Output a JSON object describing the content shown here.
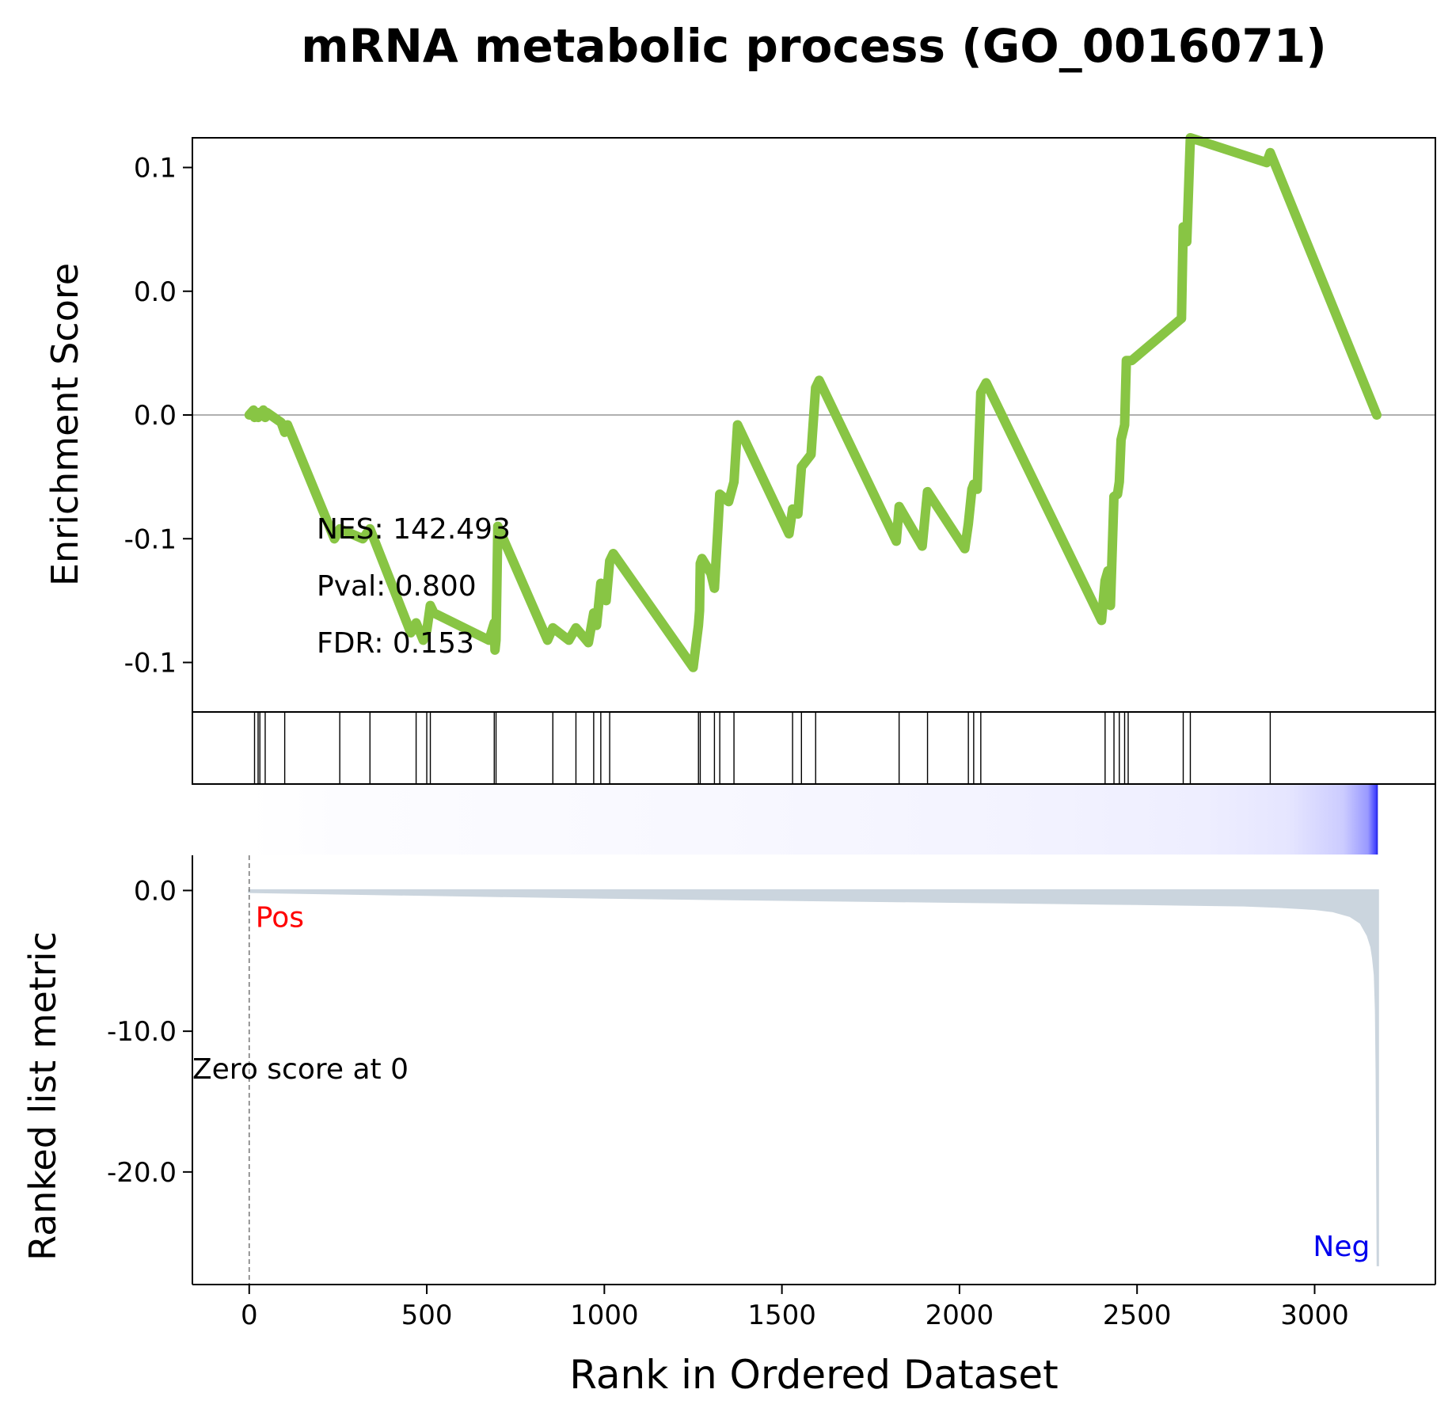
{
  "title": "mRNA metabolic process (GO_0016071)",
  "colors": {
    "es_line": "#88C544",
    "metric_fill": "#CBD5DE",
    "pos": "#FF0000",
    "neg": "#0000EE",
    "axis": "#000000",
    "zero_line": "#808080"
  },
  "chart_data": {
    "type": "line",
    "xlabel": "Rank in Ordered Dataset",
    "xlim": [
      -160,
      3340
    ],
    "x_ticks": [
      0,
      500,
      1000,
      1500,
      2000,
      2500,
      3000
    ],
    "x_tick_labels": [
      "0",
      "500",
      "1000",
      "1500",
      "2000",
      "2500",
      "3000"
    ],
    "es_panel": {
      "ylabel": "Enrichment Score",
      "ylim": [
        -0.17,
        0.062
      ],
      "y_ticks": [
        0.05,
        0.0,
        -0.05,
        -0.1,
        -0.15
      ],
      "y_tick_labels": [
        "0.1",
        "0.0",
        "0.0",
        "-0.1",
        "-0.1"
      ],
      "zero_line_y": -0.05,
      "annotations": [
        "NES: 142.493",
        "Pval: 0.800",
        "FDR: 0.153"
      ],
      "hit_ranks": [
        15,
        25,
        30,
        45,
        100,
        255,
        340,
        470,
        500,
        510,
        690,
        695,
        855,
        920,
        970,
        990,
        1015,
        1265,
        1270,
        1310,
        1325,
        1365,
        1530,
        1555,
        1595,
        1830,
        1910,
        2025,
        2040,
        2060,
        2410,
        2435,
        2450,
        2465,
        2475,
        2630,
        2650,
        2875
      ],
      "es_curve": {
        "x": [
          0,
          12,
          15,
          20,
          25,
          28,
          30,
          40,
          45,
          50,
          90,
          100,
          108,
          240,
          255,
          320,
          340,
          455,
          470,
          490,
          500,
          505,
          510,
          520,
          675,
          690,
          692,
          695,
          700,
          840,
          855,
          900,
          920,
          955,
          970,
          978,
          990,
          1005,
          1015,
          1025,
          1250,
          1265,
          1268,
          1270,
          1275,
          1300,
          1310,
          1320,
          1325,
          1350,
          1365,
          1375,
          1520,
          1530,
          1545,
          1555,
          1582,
          1595,
          1605,
          1822,
          1830,
          1895,
          1910,
          2015,
          2025,
          2035,
          2040,
          2050,
          2060,
          2075,
          2400,
          2410,
          2418,
          2425,
          2435,
          2445,
          2450,
          2455,
          2465,
          2470,
          2475,
          2485,
          2625,
          2630,
          2640,
          2650,
          2865,
          2875,
          3175
        ],
        "y": [
          -0.05,
          -0.048,
          -0.051,
          -0.049,
          -0.051,
          -0.049,
          -0.05,
          -0.048,
          -0.051,
          -0.049,
          -0.053,
          -0.057,
          -0.054,
          -0.1,
          -0.096,
          -0.1,
          -0.096,
          -0.138,
          -0.134,
          -0.141,
          -0.137,
          -0.132,
          -0.127,
          -0.13,
          -0.141,
          -0.134,
          -0.145,
          -0.141,
          -0.095,
          -0.141,
          -0.136,
          -0.141,
          -0.136,
          -0.142,
          -0.13,
          -0.135,
          -0.118,
          -0.125,
          -0.109,
          -0.106,
          -0.152,
          -0.135,
          -0.129,
          -0.11,
          -0.108,
          -0.114,
          -0.12,
          -0.095,
          -0.082,
          -0.085,
          -0.077,
          -0.054,
          -0.098,
          -0.088,
          -0.09,
          -0.071,
          -0.066,
          -0.039,
          -0.036,
          -0.101,
          -0.087,
          -0.103,
          -0.081,
          -0.104,
          -0.094,
          -0.08,
          -0.078,
          -0.08,
          -0.041,
          -0.037,
          -0.133,
          -0.117,
          -0.113,
          -0.127,
          -0.083,
          -0.082,
          -0.077,
          -0.06,
          -0.054,
          -0.028,
          -0.028,
          -0.028,
          -0.011,
          0.026,
          0.02,
          0.062,
          0.052,
          0.056,
          -0.05
        ]
      }
    },
    "metric_panel": {
      "ylabel": "Ranked list metric",
      "ylim": [
        -28,
        2.5
      ],
      "y_ticks": [
        0,
        -10,
        -20
      ],
      "y_tick_labels": [
        "0.0",
        "-10.0",
        "-20.0"
      ],
      "pos_label": "Pos",
      "neg_label": "Neg",
      "zero_score_label": "Zero score at 0",
      "zero_rank": 0,
      "metric_curve": {
        "x": [
          0,
          500,
          1000,
          1500,
          2000,
          2500,
          2800,
          2900,
          3000,
          3050,
          3100,
          3130,
          3150,
          3160,
          3165,
          3170,
          3173,
          3175,
          3177,
          3178
        ],
        "y": [
          -0.1,
          -0.3,
          -0.5,
          -0.65,
          -0.8,
          -0.95,
          -1.05,
          -1.15,
          -1.3,
          -1.45,
          -1.8,
          -2.3,
          -3.2,
          -4.0,
          -4.8,
          -6.0,
          -8.5,
          -13.0,
          -22.0,
          -26.7
        ]
      },
      "color_bar_stops": [
        {
          "rank": 0,
          "color": "#FFFFFF"
        },
        {
          "rank": 270,
          "color": "#FCFCFF"
        },
        {
          "rank": 1270,
          "color": "#F8F8FF"
        },
        {
          "rank": 2160,
          "color": "#F3F3FF"
        },
        {
          "rank": 2690,
          "color": "#EEEEFF"
        },
        {
          "rank": 2930,
          "color": "#E5E5FF"
        },
        {
          "rank": 3080,
          "color": "#CCCCFF"
        },
        {
          "rank": 3150,
          "color": "#9999FF"
        },
        {
          "rank": 3172,
          "color": "#4444FF"
        },
        {
          "rank": 3178,
          "color": "#2020DD"
        }
      ]
    }
  }
}
